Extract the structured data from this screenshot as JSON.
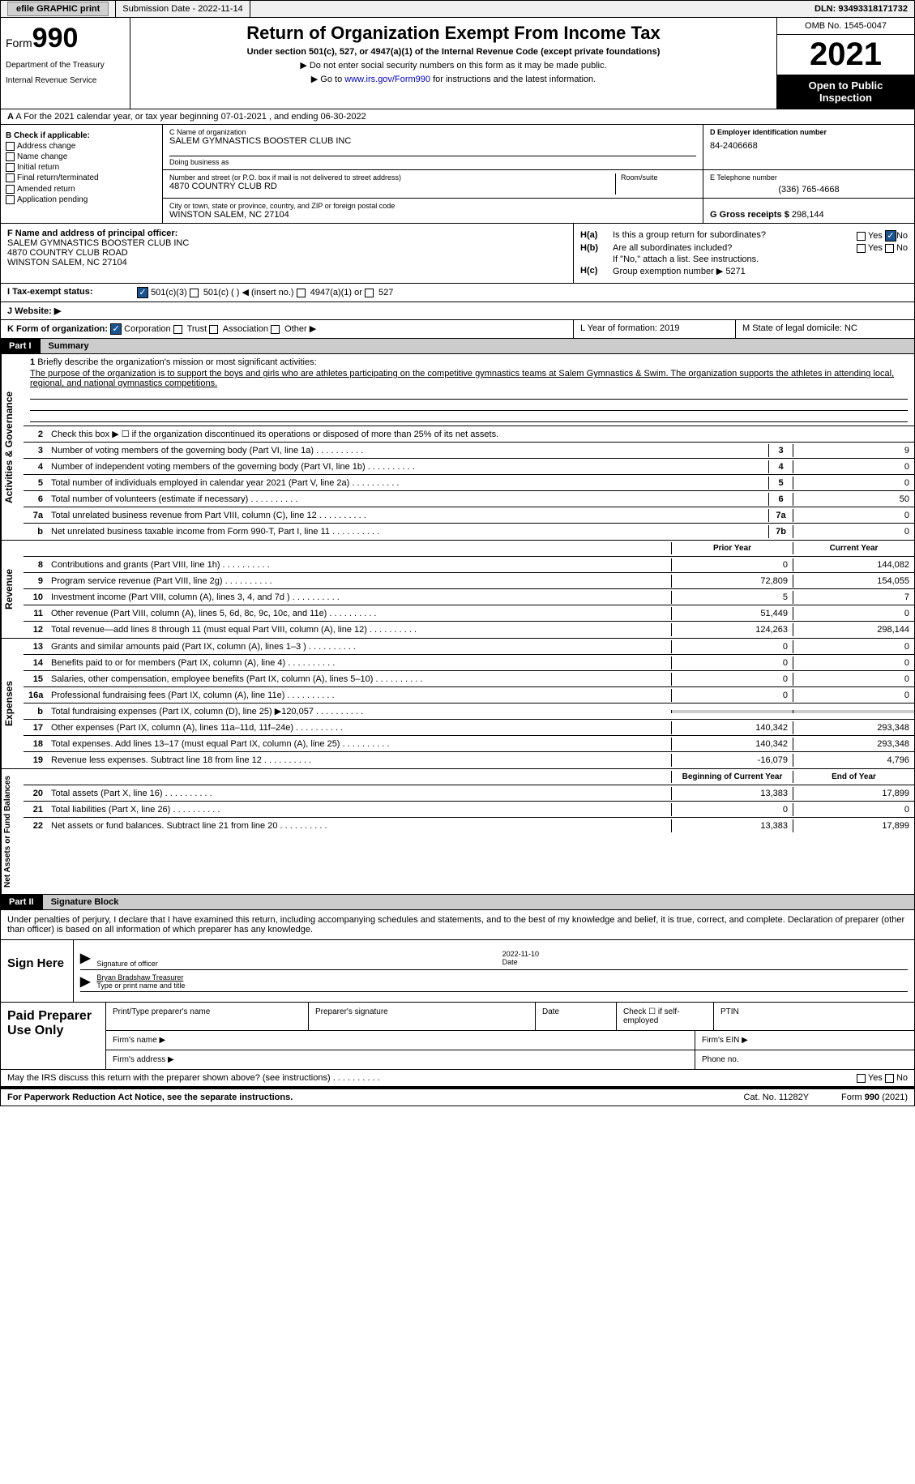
{
  "topbar": {
    "efile": "efile GRAPHIC print",
    "submission": "Submission Date - 2022-11-14",
    "dln": "DLN: 93493318171732"
  },
  "header": {
    "form": "Form",
    "formnum": "990",
    "dept": "Department of the Treasury",
    "irs": "Internal Revenue Service",
    "title": "Return of Organization Exempt From Income Tax",
    "sub": "Under section 501(c), 527, or 4947(a)(1) of the Internal Revenue Code (except private foundations)",
    "note1": "▶ Do not enter social security numbers on this form as it may be made public.",
    "note2_pre": "▶ Go to ",
    "note2_link": "www.irs.gov/Form990",
    "note2_post": " for instructions and the latest information.",
    "omb": "OMB No. 1545-0047",
    "year": "2021",
    "inspect": "Open to Public Inspection"
  },
  "rowA": "A For the 2021 calendar year, or tax year beginning 07-01-2021    , and ending 06-30-2022",
  "colB": {
    "hdr": "B Check if applicable:",
    "items": [
      "Address change",
      "Name change",
      "Initial return",
      "Final return/terminated",
      "Amended return",
      "Application pending"
    ]
  },
  "colC": {
    "name_label": "C Name of organization",
    "name": "SALEM GYMNASTICS BOOSTER CLUB INC",
    "dba_label": "Doing business as",
    "dba": "",
    "addr_label": "Number and street (or P.O. box if mail is not delivered to street address)",
    "room_label": "Room/suite",
    "addr": "4870 COUNTRY CLUB RD",
    "city_label": "City or town, state or province, country, and ZIP or foreign postal code",
    "city": "WINSTON SALEM, NC  27104"
  },
  "colD": {
    "ein_label": "D Employer identification number",
    "ein": "84-2406668",
    "tel_label": "E Telephone number",
    "tel": "(336) 765-4668",
    "gross_label": "G Gross receipts $",
    "gross": "298,144"
  },
  "colF": {
    "label": "F Name and address of principal officer:",
    "l1": "SALEM GYMNASTICS BOOSTER CLUB INC",
    "l2": "4870 COUNTRY CLUB ROAD",
    "l3": "WINSTON SALEM, NC  27104"
  },
  "colH": {
    "ha": "Is this a group return for subordinates?",
    "hb": "Are all subordinates included?",
    "hb_note": "If \"No,\" attach a list. See instructions.",
    "hc": "Group exemption number ▶",
    "hc_val": "5271"
  },
  "rowI": {
    "label": "I    Tax-exempt status:",
    "o1": "501(c)(3)",
    "o2": "501(c) (   ) ◀ (insert no.)",
    "o3": "4947(a)(1) or",
    "o4": "527"
  },
  "rowJ": "J    Website: ▶",
  "rowK": {
    "k": "K Form of organization:",
    "o1": "Corporation",
    "o2": "Trust",
    "o3": "Association",
    "o4": "Other ▶",
    "l": "L Year of formation: 2019",
    "m": "M State of legal domicile: NC"
  },
  "part1": {
    "hdr": "Part I",
    "title": "Summary"
  },
  "mission": {
    "q": "Briefly describe the organization's mission or most significant activities:",
    "a": "The purpose of the organization is to support the boys and girls who are athletes participating on the competitive gymnastics teams at Salem Gymnastics & Swim. The organization supports the athletes in attending local, regional, and national gymnastics competitions."
  },
  "lines_gov": [
    {
      "n": "2",
      "t": "Check this box ▶ ☐  if the organization discontinued its operations or disposed of more than 25% of its net assets."
    },
    {
      "n": "3",
      "t": "Number of voting members of the governing body (Part VI, line 1a)",
      "box": "3",
      "v": "9"
    },
    {
      "n": "4",
      "t": "Number of independent voting members of the governing body (Part VI, line 1b)",
      "box": "4",
      "v": "0"
    },
    {
      "n": "5",
      "t": "Total number of individuals employed in calendar year 2021 (Part V, line 2a)",
      "box": "5",
      "v": "0"
    },
    {
      "n": "6",
      "t": "Total number of volunteers (estimate if necessary)",
      "box": "6",
      "v": "50"
    },
    {
      "n": "7a",
      "t": "Total unrelated business revenue from Part VIII, column (C), line 12",
      "box": "7a",
      "v": "0"
    },
    {
      "n": "b",
      "t": "Net unrelated business taxable income from Form 990-T, Part I, line 11",
      "box": "7b",
      "v": "0"
    }
  ],
  "rev_hdr": {
    "py": "Prior Year",
    "cy": "Current Year"
  },
  "lines_rev": [
    {
      "n": "8",
      "t": "Contributions and grants (Part VIII, line 1h)",
      "py": "0",
      "cy": "144,082"
    },
    {
      "n": "9",
      "t": "Program service revenue (Part VIII, line 2g)",
      "py": "72,809",
      "cy": "154,055"
    },
    {
      "n": "10",
      "t": "Investment income (Part VIII, column (A), lines 3, 4, and 7d )",
      "py": "5",
      "cy": "7"
    },
    {
      "n": "11",
      "t": "Other revenue (Part VIII, column (A), lines 5, 6d, 8c, 9c, 10c, and 11e)",
      "py": "51,449",
      "cy": "0"
    },
    {
      "n": "12",
      "t": "Total revenue—add lines 8 through 11 (must equal Part VIII, column (A), line 12)",
      "py": "124,263",
      "cy": "298,144"
    }
  ],
  "lines_exp": [
    {
      "n": "13",
      "t": "Grants and similar amounts paid (Part IX, column (A), lines 1–3 )",
      "py": "0",
      "cy": "0"
    },
    {
      "n": "14",
      "t": "Benefits paid to or for members (Part IX, column (A), line 4)",
      "py": "0",
      "cy": "0"
    },
    {
      "n": "15",
      "t": "Salaries, other compensation, employee benefits (Part IX, column (A), lines 5–10)",
      "py": "0",
      "cy": "0"
    },
    {
      "n": "16a",
      "t": "Professional fundraising fees (Part IX, column (A), line 11e)",
      "py": "0",
      "cy": "0"
    },
    {
      "n": "b",
      "t": "Total fundraising expenses (Part IX, column (D), line 25) ▶120,057",
      "py": "gray",
      "cy": "gray"
    },
    {
      "n": "17",
      "t": "Other expenses (Part IX, column (A), lines 11a–11d, 11f–24e)",
      "py": "140,342",
      "cy": "293,348"
    },
    {
      "n": "18",
      "t": "Total expenses. Add lines 13–17 (must equal Part IX, column (A), line 25)",
      "py": "140,342",
      "cy": "293,348"
    },
    {
      "n": "19",
      "t": "Revenue less expenses. Subtract line 18 from line 12",
      "py": "-16,079",
      "cy": "4,796"
    }
  ],
  "na_hdr": {
    "py": "Beginning of Current Year",
    "cy": "End of Year"
  },
  "lines_na": [
    {
      "n": "20",
      "t": "Total assets (Part X, line 16)",
      "py": "13,383",
      "cy": "17,899"
    },
    {
      "n": "21",
      "t": "Total liabilities (Part X, line 26)",
      "py": "0",
      "cy": "0"
    },
    {
      "n": "22",
      "t": "Net assets or fund balances. Subtract line 21 from line 20",
      "py": "13,383",
      "cy": "17,899"
    }
  ],
  "part2": {
    "hdr": "Part II",
    "title": "Signature Block"
  },
  "sigtext": "Under penalties of perjury, I declare that I have examined this return, including accompanying schedules and statements, and to the best of my knowledge and belief, it is true, correct, and complete. Declaration of preparer (other than officer) is based on all information of which preparer has any knowledge.",
  "sign": {
    "here": "Sign Here",
    "sig_label": "Signature of officer",
    "date_label": "Date",
    "date": "2022-11-10",
    "name": "Bryan Bradshaw  Treasurer",
    "name_label": "Type or print name and title"
  },
  "prep": {
    "left": "Paid Preparer Use Only",
    "c1": "Print/Type preparer's name",
    "c2": "Preparer's signature",
    "c3": "Date",
    "c4": "Check ☐ if self-employed",
    "c5": "PTIN",
    "firm": "Firm's name    ▶",
    "ein": "Firm's EIN ▶",
    "addr": "Firm's address ▶",
    "phone": "Phone no."
  },
  "discuss": "May the IRS discuss this return with the preparer shown above? (see instructions)",
  "footer": {
    "f1": "For Paperwork Reduction Act Notice, see the separate instructions.",
    "f2": "Cat. No. 11282Y",
    "f3": "Form 990 (2021)"
  },
  "sidelabels": {
    "gov": "Activities & Governance",
    "rev": "Revenue",
    "exp": "Expenses",
    "na": "Net Assets or Fund Balances"
  }
}
